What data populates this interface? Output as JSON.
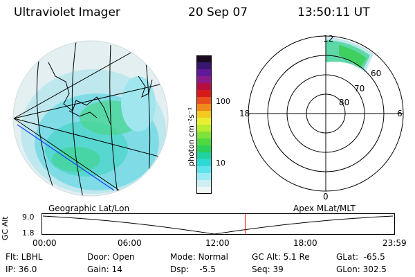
{
  "header": {
    "instrument": "Ultraviolet Imager",
    "date": "20 Sep 07",
    "time": "13:50:11 UT"
  },
  "colorbar": {
    "unit_label": "photon cm⁻²s⁻¹",
    "ticks": [
      "100",
      "10"
    ],
    "colors": [
      "#1a0a1f",
      "#3b1670",
      "#5e1898",
      "#8c1a8a",
      "#b40f40",
      "#d61a1a",
      "#e8501a",
      "#f08a1a",
      "#f3c820",
      "#e8ef30",
      "#b8ec30",
      "#7fe23a",
      "#4fd840",
      "#2ccf5a",
      "#21d2a0",
      "#2dd9d0",
      "#5fe3ec",
      "#9aecf4",
      "#cfeef2",
      "#eef6f6"
    ]
  },
  "polar_plot": {
    "mlt_labels": {
      "top": "12",
      "left": "18",
      "right": "6",
      "bottom": "0"
    },
    "lat_labels": [
      "60",
      "70",
      "80"
    ]
  },
  "altitude_panel": {
    "left_title": "Geographic Lat/Lon",
    "right_title": "Apex MLat/MLT",
    "axis_label": "GC Alt",
    "y_ticks": [
      "9.0",
      "1.8"
    ],
    "x_ticks": [
      "00:00",
      "06:00",
      "12:00",
      "18:00",
      "23:59"
    ],
    "marker_hour": 13.836,
    "marker_color": "#ff0000"
  },
  "status": {
    "filter": "Flt: LBHL",
    "ip": "IP: 36.0",
    "door": "Door: Open",
    "gain": "Gain: 14",
    "mode": "Mode: Normal",
    "dsp": "Dsp:    -5.5",
    "gc_alt": "GC Alt: 5.1 Re",
    "seq": "Seq: 39",
    "glat": "GLat:  -65.5",
    "glon": "GLon: 302.5"
  }
}
